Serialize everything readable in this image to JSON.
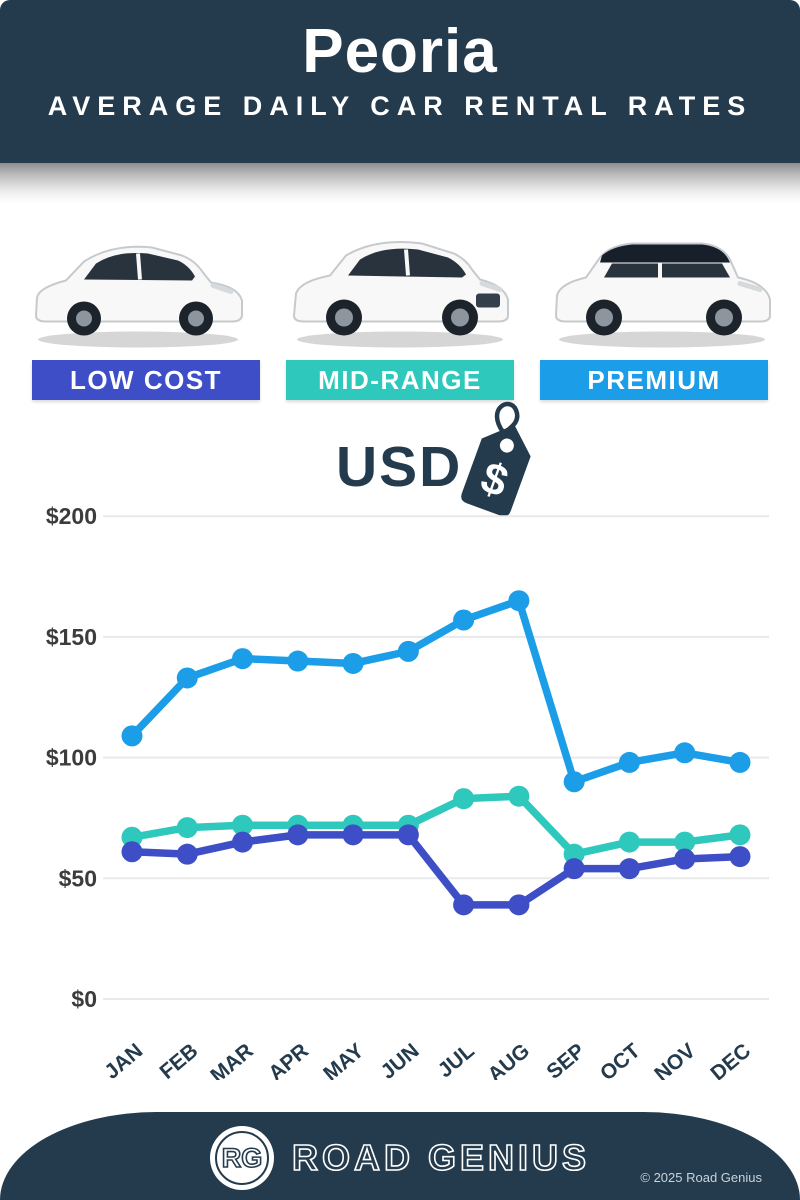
{
  "header": {
    "title": "Peoria",
    "subtitle": "AVERAGE DAILY CAR RENTAL RATES"
  },
  "categories": [
    {
      "label": "LOW COST",
      "color": "#3D4EC6"
    },
    {
      "label": "MID-RANGE",
      "color": "#2FC8BC"
    },
    {
      "label": "PREMIUM",
      "color": "#1B9DE8"
    }
  ],
  "currency": {
    "label": "USD",
    "icon": "price-tag-dollar-icon"
  },
  "chart_data": {
    "type": "line",
    "title": "Peoria — Average Daily Car Rental Rates (USD)",
    "categories": [
      "JAN",
      "FEB",
      "MAR",
      "APR",
      "MAY",
      "JUN",
      "JUL",
      "AUG",
      "SEP",
      "OCT",
      "NOV",
      "DEC"
    ],
    "series": [
      {
        "name": "PREMIUM",
        "color": "#1B9DE8",
        "values": [
          109,
          133,
          141,
          140,
          139,
          144,
          157,
          165,
          90,
          98,
          102,
          98
        ]
      },
      {
        "name": "MID-RANGE",
        "color": "#2FC8BC",
        "values": [
          67,
          71,
          72,
          72,
          72,
          72,
          83,
          84,
          60,
          65,
          65,
          68
        ]
      },
      {
        "name": "LOW COST",
        "color": "#3D4EC6",
        "values": [
          61,
          60,
          65,
          68,
          68,
          68,
          39,
          39,
          54,
          54,
          58,
          59
        ]
      }
    ],
    "y_ticks": [
      "$200",
      "$150",
      "$100",
      "$50",
      "$0"
    ],
    "ylim": [
      0,
      200
    ],
    "grid": true,
    "legend_position": "category-badges-above-chart"
  },
  "footer": {
    "logo_initials": "RG",
    "brand": "ROAD GENIUS",
    "copyright": "© 2025 Road Genius"
  },
  "colors": {
    "navy": "#243B4D",
    "grid_line": "#E9E9E9",
    "tick_label": "#3C3C3C"
  }
}
